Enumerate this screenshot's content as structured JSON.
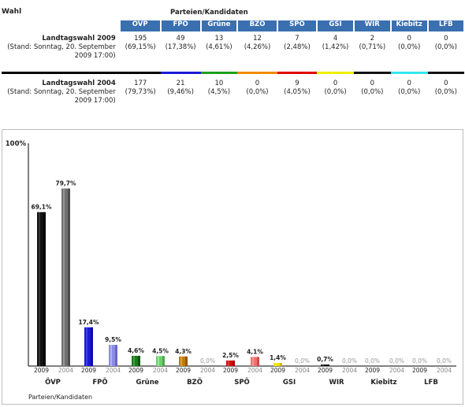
{
  "header": {
    "wahl_label": "Wahl",
    "parteien_label": "Parteien/Kandidaten"
  },
  "parties": [
    {
      "name": "ÖVP",
      "color": "#000000"
    },
    {
      "name": "FPÖ",
      "color": "#1a1ad6"
    },
    {
      "name": "Grüne",
      "color": "#1e9e1e"
    },
    {
      "name": "BZÖ",
      "color": "#f08a00"
    },
    {
      "name": "SPÖ",
      "color": "#e00000"
    },
    {
      "name": "GSI",
      "color": "#eeee00"
    },
    {
      "name": "WIR",
      "color": "#111111"
    },
    {
      "name": "Kiebitz",
      "color": "#33e6f0"
    },
    {
      "name": "LFB",
      "color": "#111111"
    }
  ],
  "elections": [
    {
      "title": "Landtagswahl 2009",
      "stand": "(Stand: Sonntag, 20. September 2009 17:00)",
      "seats": [
        "195",
        "49",
        "13",
        "12",
        "7",
        "4",
        "2",
        "0",
        "0"
      ],
      "percents": [
        "(69,15%)",
        "(17,38%)",
        "(4,61%)",
        "(4,26%)",
        "(2,48%)",
        "(1,42%)",
        "(0,71%)",
        "(0,0%)",
        "(0,0%)"
      ]
    },
    {
      "title": "Landtagswahl 2004",
      "stand": "(Stand: Sonntag, 20. September 2009 17:00)",
      "seats": [
        "177",
        "21",
        "10",
        "0",
        "9",
        "0",
        "0",
        "0",
        "0"
      ],
      "percents": [
        "(79,73%)",
        "(9,46%)",
        "(4,5%)",
        "(0,0%)",
        "(4,05%)",
        "(0,0%)",
        "(0,0%)",
        "(0,0%)",
        "(0,0%)"
      ]
    }
  ],
  "chart_data": {
    "type": "bar",
    "ymax_label": "100%",
    "ylim": [
      0,
      100
    ],
    "xlabel": "Parteien/Kandidaten",
    "categories": [
      "ÖVP",
      "FPÖ",
      "Grüne",
      "BZÖ",
      "SPÖ",
      "GSI",
      "WIR",
      "Kiebitz",
      "LFB"
    ],
    "series": [
      {
        "name": "2009",
        "values": [
          69.1,
          17.4,
          4.6,
          4.3,
          2.5,
          1.4,
          0.7,
          0.0,
          0.0
        ],
        "labels": [
          "69,1%",
          "17,4%",
          "4,6%",
          "4,3%",
          "2,5%",
          "1,4%",
          "0,7%",
          "0,0%",
          "0,0%"
        ],
        "colors": [
          "#111111",
          "#1a1ad6",
          "#1e7a1e",
          "#c07a10",
          "#d01010",
          "#f0e000",
          "#111111",
          "#111111",
          "#111111"
        ]
      },
      {
        "name": "2004",
        "values": [
          79.7,
          9.5,
          4.5,
          0.0,
          4.1,
          0.0,
          0.0,
          0.0,
          0.0
        ],
        "labels": [
          "79,7%",
          "9,5%",
          "4,5%",
          "0,0%",
          "4,1%",
          "0,0%",
          "0,0%",
          "0,0%",
          "0,0%"
        ],
        "colors": [
          "#707070",
          "#8c8ce8",
          "#6fcf6f",
          "#f2b060",
          "#f07070",
          "#f5ef80",
          "#999999",
          "#999999",
          "#999999"
        ]
      }
    ],
    "grid": false,
    "legend": "none"
  }
}
